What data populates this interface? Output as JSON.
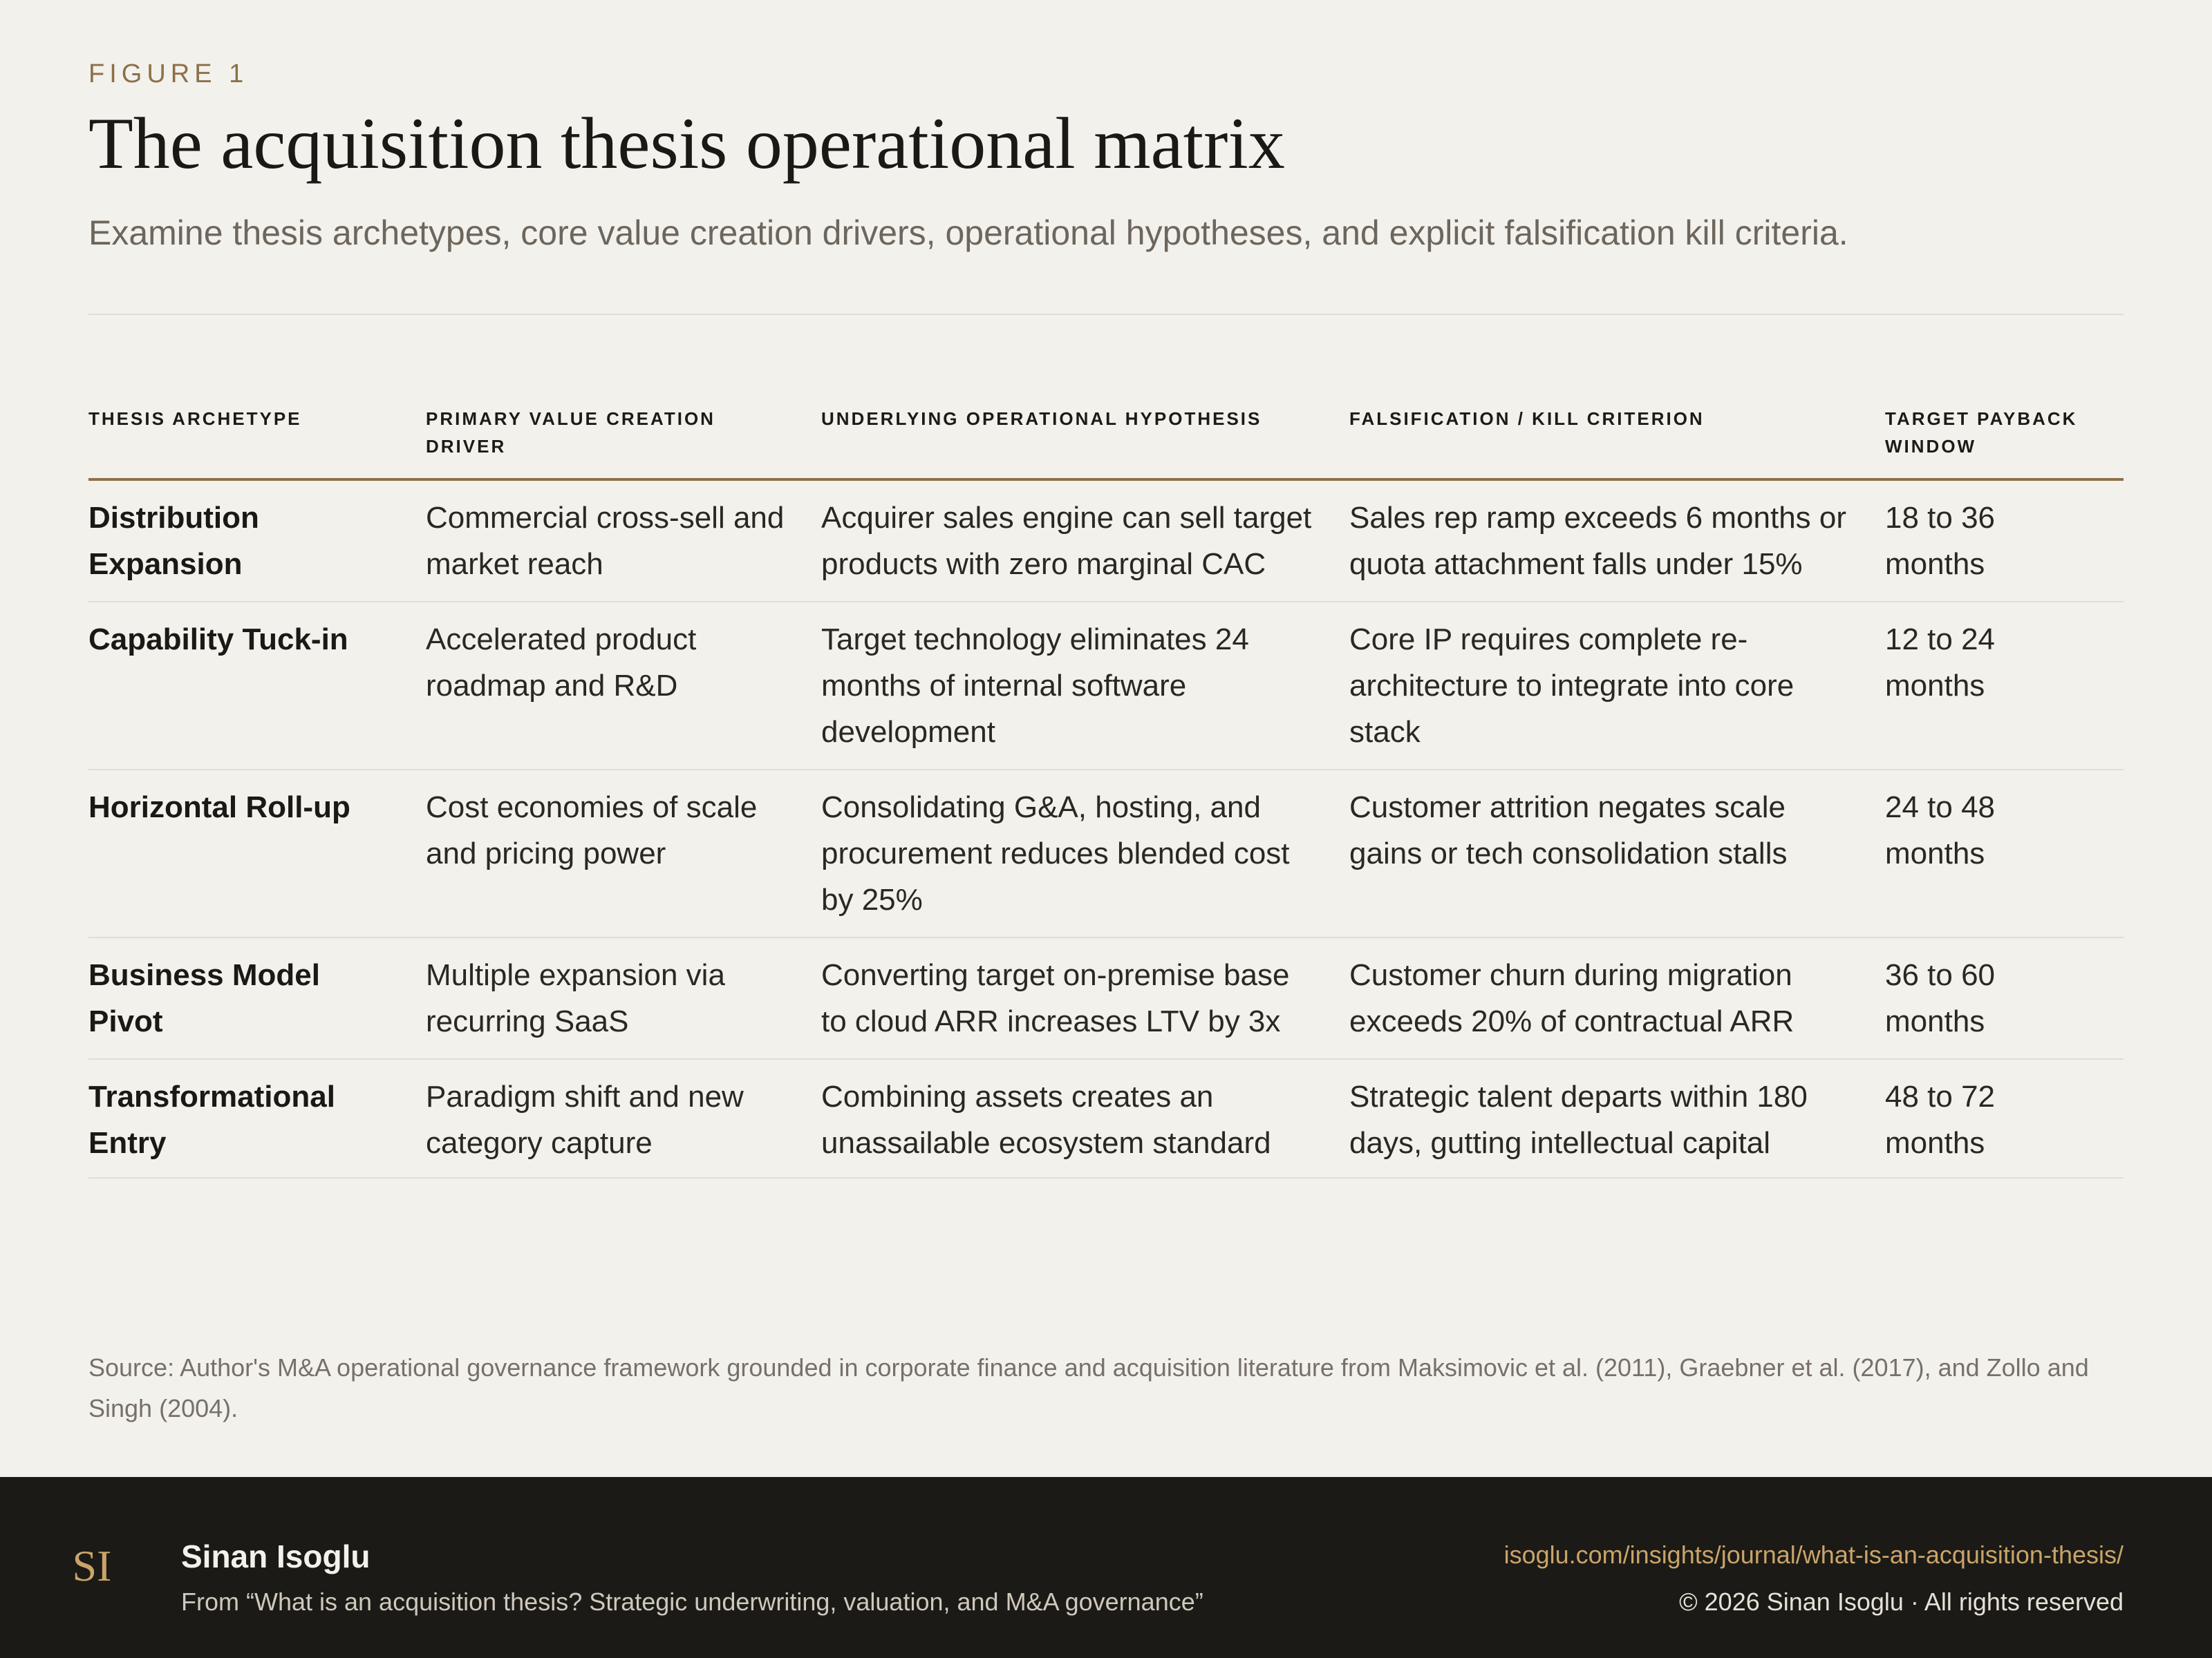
{
  "header": {
    "eyebrow": "FIGURE 1",
    "title": "The acquisition thesis operational matrix",
    "subtitle": "Examine thesis archetypes, core value creation drivers, operational hypotheses, and explicit falsification kill criteria."
  },
  "table": {
    "columns": [
      "THESIS ARCHETYPE",
      "PRIMARY VALUE CREATION DRIVER",
      "UNDERLYING OPERATIONAL HYPOTHESIS",
      "FALSIFICATION / KILL CRITERION",
      "TARGET PAYBACK WINDOW"
    ],
    "rows": [
      {
        "archetype": "Distribution Expansion",
        "driver": "Commercial cross-sell and market reach",
        "hypothesis": "Acquirer sales engine can sell target products with zero marginal CAC",
        "kill": "Sales rep ramp exceeds 6 months or quota attachment falls under 15%",
        "payback": "18 to 36 months"
      },
      {
        "archetype": "Capability Tuck-in",
        "driver": "Accelerated product roadmap and R&D",
        "hypothesis": "Target technology eliminates 24 months of internal software development",
        "kill": "Core IP requires complete re-architecture to integrate into core stack",
        "payback": "12 to 24 months"
      },
      {
        "archetype": "Horizontal Roll-up",
        "driver": "Cost economies of scale and pricing power",
        "hypothesis": "Consolidating G&A, hosting, and procurement reduces blended cost by 25%",
        "kill": "Customer attrition negates scale gains or tech consolidation stalls",
        "payback": "24 to 48 months"
      },
      {
        "archetype": "Business Model Pivot",
        "driver": "Multiple expansion via recurring SaaS",
        "hypothesis": "Converting target on-premise base to cloud ARR increases LTV by 3x",
        "kill": "Customer churn during migration exceeds 20% of contractual ARR",
        "payback": "36 to 60 months"
      },
      {
        "archetype": "Transformational Entry",
        "driver": "Paradigm shift and new category capture",
        "hypothesis": "Combining assets creates an unassailable ecosystem standard",
        "kill": "Strategic talent departs within 180 days, gutting intellectual capital",
        "payback": "48 to 72 months"
      }
    ]
  },
  "source": "Source: Author's M&A operational governance framework grounded in corporate finance and acquisition literature from Maksimovic et al. (2011), Graebner et al. (2017), and Zollo and Singh (2004).",
  "footer": {
    "logo_text": "SI",
    "author": "Sinan Isoglu",
    "article": "From “What is an acquisition thesis? Strategic underwriting, valuation, and M&A governance”",
    "url": "isoglu.com/insights/journal/what-is-an-acquisition-thesis/",
    "copyright": "© 2026 Sinan Isoglu · All rights reserved"
  },
  "colors": {
    "background": "#f3f1ec",
    "accent": "#8c7048",
    "footer_background": "#1b1a16",
    "link": "#c9a46a"
  }
}
